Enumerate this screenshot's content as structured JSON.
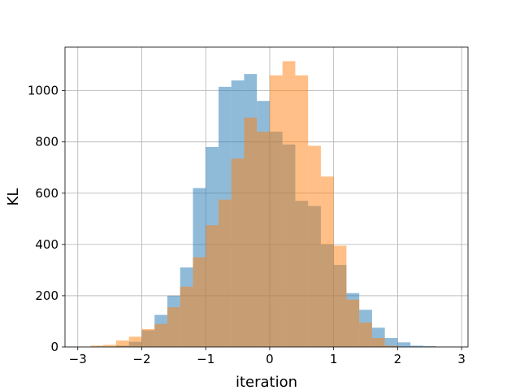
{
  "chart_data": {
    "type": "bar",
    "xlabel": "iteration",
    "ylabel": "KL",
    "xlim": [
      -3.2,
      3.1
    ],
    "ylim": [
      0,
      1170
    ],
    "x_ticks": [
      -3,
      -2,
      -1,
      0,
      1,
      2,
      3
    ],
    "y_ticks": [
      0,
      200,
      400,
      600,
      800,
      1000
    ],
    "grid": true,
    "bin_width": 0.2,
    "series": [
      {
        "color": "#1f77b4",
        "opacity": 0.5,
        "bins": [
          {
            "x0": -2.4,
            "value": 5
          },
          {
            "x0": -2.2,
            "value": 20
          },
          {
            "x0": -2.0,
            "value": 65
          },
          {
            "x0": -1.8,
            "value": 125
          },
          {
            "x0": -1.6,
            "value": 200
          },
          {
            "x0": -1.4,
            "value": 310
          },
          {
            "x0": -1.2,
            "value": 620
          },
          {
            "x0": -1.0,
            "value": 780
          },
          {
            "x0": -0.8,
            "value": 1015
          },
          {
            "x0": -0.6,
            "value": 1040
          },
          {
            "x0": -0.4,
            "value": 1065
          },
          {
            "x0": -0.2,
            "value": 960
          },
          {
            "x0": 0.0,
            "value": 840
          },
          {
            "x0": 0.2,
            "value": 790
          },
          {
            "x0": 0.4,
            "value": 570
          },
          {
            "x0": 0.6,
            "value": 550
          },
          {
            "x0": 0.8,
            "value": 400
          },
          {
            "x0": 1.0,
            "value": 320
          },
          {
            "x0": 1.2,
            "value": 210
          },
          {
            "x0": 1.4,
            "value": 145
          },
          {
            "x0": 1.6,
            "value": 75
          },
          {
            "x0": 1.8,
            "value": 35
          },
          {
            "x0": 2.0,
            "value": 18
          },
          {
            "x0": 2.2,
            "value": 5
          },
          {
            "x0": 2.4,
            "value": 3
          }
        ]
      },
      {
        "color": "#ff7f0e",
        "opacity": 0.5,
        "bins": [
          {
            "x0": -2.8,
            "value": 5
          },
          {
            "x0": -2.6,
            "value": 8
          },
          {
            "x0": -2.4,
            "value": 25
          },
          {
            "x0": -2.2,
            "value": 40
          },
          {
            "x0": -2.0,
            "value": 70
          },
          {
            "x0": -1.8,
            "value": 90
          },
          {
            "x0": -1.6,
            "value": 155
          },
          {
            "x0": -1.4,
            "value": 235
          },
          {
            "x0": -1.2,
            "value": 350
          },
          {
            "x0": -1.0,
            "value": 475
          },
          {
            "x0": -0.8,
            "value": 575
          },
          {
            "x0": -0.6,
            "value": 735
          },
          {
            "x0": -0.4,
            "value": 895
          },
          {
            "x0": -0.2,
            "value": 840
          },
          {
            "x0": 0.0,
            "value": 1060
          },
          {
            "x0": 0.2,
            "value": 1115
          },
          {
            "x0": 0.4,
            "value": 1060
          },
          {
            "x0": 0.6,
            "value": 785
          },
          {
            "x0": 0.8,
            "value": 665
          },
          {
            "x0": 1.0,
            "value": 395
          },
          {
            "x0": 1.2,
            "value": 185
          },
          {
            "x0": 1.4,
            "value": 95
          },
          {
            "x0": 1.6,
            "value": 35
          },
          {
            "x0": 1.8,
            "value": 5
          }
        ]
      }
    ]
  }
}
